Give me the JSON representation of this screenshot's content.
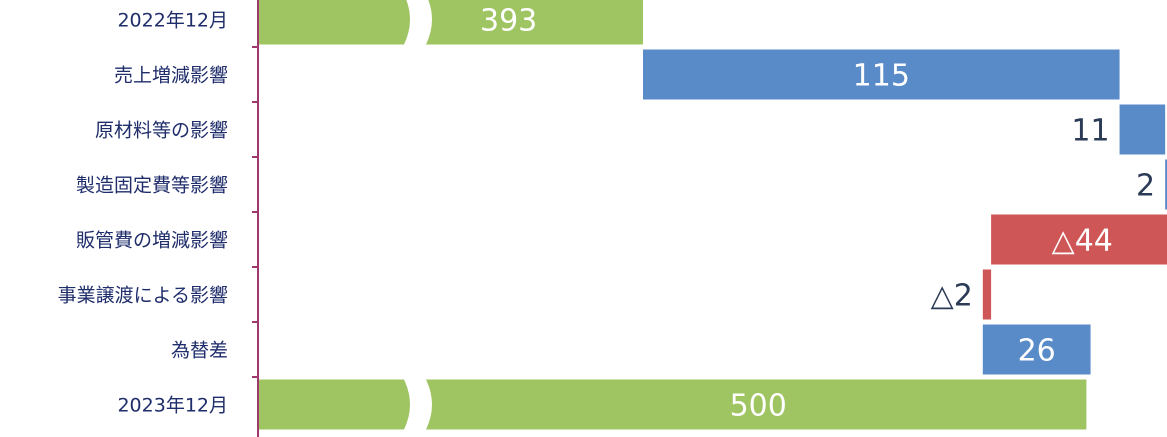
{
  "chart_data": {
    "type": "bar",
    "subtype": "waterfall",
    "orientation": "horizontal",
    "axis_break": true,
    "categories": [
      "2022年12月",
      "売上増減影響",
      "原材料等の影響",
      "製造固定費等影響",
      "販管費の増減影響",
      "事業譲渡による影響",
      "為替差",
      "2023年12月"
    ],
    "values": [
      393,
      115,
      11,
      2,
      -44,
      -2,
      26,
      500
    ],
    "value_labels": [
      "393",
      "115",
      "11",
      "2",
      "△44",
      "△2",
      "26",
      "500"
    ],
    "bar_kinds": [
      "total",
      "increase",
      "increase",
      "increase",
      "decrease",
      "decrease",
      "increase",
      "total"
    ],
    "colors": {
      "total": "#9fc462",
      "increase": "#5a8bc9",
      "decrease": "#cf5656",
      "axis": "#a0386e",
      "category_text": "#1f2d6b",
      "outside_value_text": "#2b3a55",
      "inside_value_text": "#ffffff"
    }
  }
}
